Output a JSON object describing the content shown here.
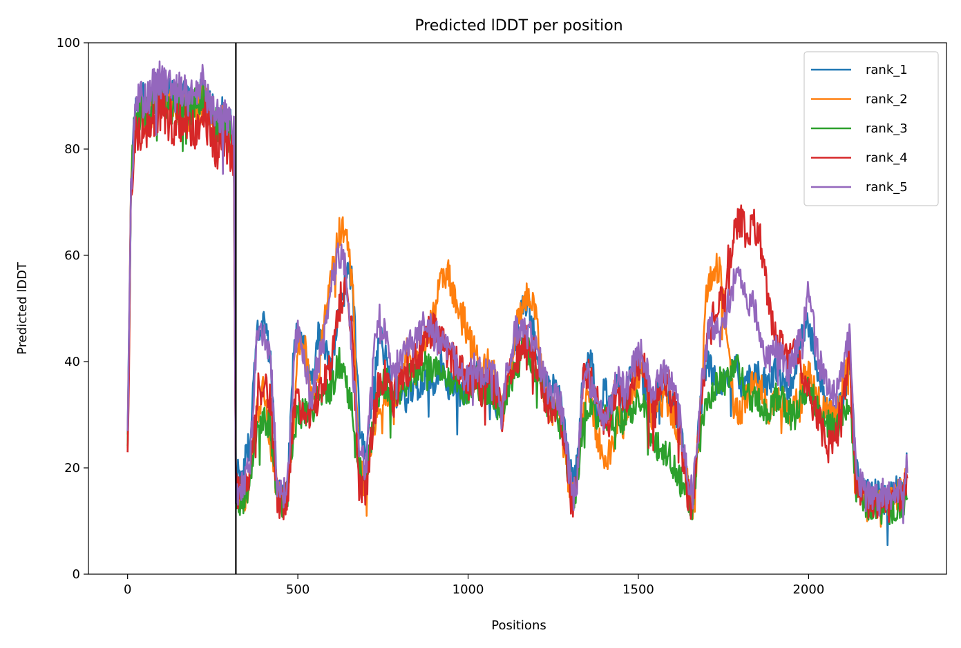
{
  "chart_data": {
    "type": "line",
    "title": "Predicted lDDT per position",
    "xlabel": "Positions",
    "ylabel": "Predicted lDDT",
    "xlim": [
      -115,
      2405
    ],
    "ylim": [
      0,
      100
    ],
    "xticks": [
      0,
      500,
      1000,
      1500,
      2000
    ],
    "yticks": [
      0,
      20,
      40,
      60,
      80,
      100
    ],
    "legend_position": "top-right",
    "vline_x": 318,
    "n_positions": 2291,
    "colors": [
      "#1f77b4",
      "#ff7f0e",
      "#2ca02c",
      "#d62728",
      "#9467bd"
    ],
    "shape_x": [
      0,
      10,
      20,
      40,
      60,
      80,
      100,
      120,
      140,
      160,
      180,
      200,
      220,
      240,
      260,
      280,
      300,
      312,
      318,
      325,
      340,
      360,
      380,
      400,
      420,
      440,
      455,
      470,
      490,
      500,
      520,
      540,
      560,
      580,
      600,
      620,
      640,
      660,
      680,
      700,
      720,
      740,
      760,
      780,
      800,
      820,
      840,
      860,
      880,
      900,
      920,
      940,
      960,
      980,
      1000,
      1020,
      1040,
      1060,
      1080,
      1100,
      1120,
      1140,
      1160,
      1180,
      1200,
      1220,
      1240,
      1260,
      1280,
      1300,
      1310,
      1320,
      1340,
      1360,
      1380,
      1400,
      1420,
      1440,
      1460,
      1480,
      1500,
      1520,
      1540,
      1560,
      1580,
      1600,
      1620,
      1640,
      1660,
      1680,
      1700,
      1720,
      1740,
      1760,
      1780,
      1800,
      1820,
      1840,
      1860,
      1880,
      1900,
      1920,
      1940,
      1960,
      1980,
      2000,
      2020,
      2040,
      2060,
      2080,
      2100,
      2120,
      2140,
      2160,
      2180,
      2200,
      2220,
      2240,
      2260,
      2280,
      2290
    ],
    "series": [
      {
        "name": "rank_1",
        "noise": 3.0,
        "values": [
          25,
          72,
          86,
          89,
          88,
          90,
          91,
          90,
          89,
          90,
          88,
          89,
          90,
          88,
          86,
          86,
          84,
          82,
          19,
          19,
          20,
          25,
          45,
          47,
          40,
          16,
          14,
          16,
          45,
          46,
          42,
          35,
          45,
          43,
          40,
          48,
          58,
          55,
          30,
          22,
          33,
          45,
          40,
          33,
          35,
          33,
          36,
          35,
          38,
          36,
          40,
          36,
          35,
          34,
          35,
          40,
          35,
          36,
          32,
          30,
          37,
          44,
          52,
          50,
          42,
          37,
          34,
          36,
          30,
          20,
          17,
          20,
          40,
          41,
          30,
          35,
          32,
          36,
          31,
          38,
          40,
          35,
          30,
          34,
          36,
          32,
          30,
          20,
          14,
          30,
          40,
          38,
          35,
          36,
          40,
          36,
          36,
          38,
          37,
          35,
          38,
          37,
          34,
          39,
          44,
          47,
          41,
          35,
          30,
          31,
          32,
          40,
          20,
          16,
          15,
          15,
          14,
          15,
          16,
          17,
          23
        ]
      },
      {
        "name": "rank_2",
        "noise": 3.0,
        "values": [
          22,
          72,
          84,
          88,
          87,
          89,
          90,
          89,
          88,
          87,
          86,
          87,
          89,
          87,
          84,
          85,
          83,
          80,
          17,
          15,
          14,
          18,
          30,
          35,
          25,
          15,
          13,
          15,
          30,
          42,
          43,
          33,
          36,
          50,
          57,
          64,
          65,
          55,
          20,
          16,
          25,
          30,
          35,
          33,
          36,
          42,
          38,
          40,
          45,
          50,
          55,
          57,
          52,
          50,
          45,
          42,
          38,
          40,
          37,
          30,
          36,
          47,
          50,
          53,
          48,
          36,
          30,
          32,
          24,
          16,
          15,
          17,
          32,
          33,
          26,
          22,
          23,
          30,
          28,
          33,
          38,
          36,
          30,
          32,
          33,
          30,
          27,
          18,
          13,
          28,
          52,
          58,
          57,
          45,
          32,
          30,
          33,
          36,
          35,
          30,
          33,
          34,
          30,
          32,
          36,
          38,
          34,
          32,
          30,
          30,
          35,
          43,
          18,
          15,
          14,
          14,
          13,
          14,
          15,
          16,
          21
        ]
      },
      {
        "name": "rank_3",
        "noise": 3.0,
        "values": [
          22,
          72,
          84,
          88,
          87,
          89,
          90,
          89,
          88,
          89,
          87,
          88,
          89,
          87,
          84,
          85,
          82,
          79,
          15,
          14,
          14,
          18,
          28,
          30,
          27,
          15,
          13,
          15,
          28,
          30,
          30,
          31,
          33,
          35,
          35,
          40,
          37,
          31,
          20,
          17,
          28,
          35,
          36,
          34,
          35,
          36,
          38,
          39,
          40,
          38,
          38,
          37,
          36,
          34,
          35,
          37,
          34,
          35,
          33,
          30,
          35,
          38,
          42,
          42,
          38,
          34,
          30,
          31,
          26,
          17,
          15,
          17,
          30,
          32,
          30,
          30,
          29,
          30,
          29,
          31,
          33,
          31,
          26,
          24,
          23,
          21,
          18,
          15,
          13,
          25,
          32,
          35,
          36,
          36,
          40,
          38,
          34,
          33,
          32,
          30,
          33,
          33,
          30,
          30,
          33,
          35,
          32,
          30,
          28,
          27,
          30,
          33,
          16,
          14,
          13,
          13,
          12,
          12,
          13,
          14,
          17
        ]
      },
      {
        "name": "rank_4",
        "noise": 3.5,
        "values": [
          20,
          70,
          82,
          84,
          85,
          86,
          88,
          86,
          85,
          86,
          84,
          85,
          87,
          84,
          80,
          82,
          80,
          78,
          16,
          15,
          15,
          20,
          34,
          36,
          32,
          14,
          13,
          15,
          32,
          35,
          30,
          30,
          34,
          37,
          40,
          50,
          55,
          45,
          17,
          16,
          28,
          36,
          38,
          33,
          36,
          38,
          40,
          42,
          46,
          46,
          44,
          42,
          40,
          38,
          36,
          38,
          35,
          36,
          34,
          30,
          37,
          40,
          44,
          44,
          40,
          35,
          30,
          32,
          27,
          15,
          14,
          17,
          38,
          37,
          32,
          28,
          30,
          36,
          31,
          36,
          40,
          38,
          31,
          34,
          37,
          33,
          28,
          17,
          12,
          28,
          43,
          48,
          50,
          57,
          64,
          67,
          64,
          66,
          62,
          52,
          45,
          43,
          40,
          42,
          38,
          34,
          30,
          27,
          24,
          25,
          33,
          40,
          16,
          14,
          13,
          13,
          13,
          13,
          14,
          15,
          19
        ]
      },
      {
        "name": "rank_5",
        "noise": 3.0,
        "values": [
          24,
          72,
          86,
          90,
          89,
          92,
          93,
          92,
          91,
          92,
          89,
          90,
          92,
          89,
          86,
          86,
          85,
          84,
          16,
          16,
          17,
          22,
          44,
          46,
          40,
          17,
          15,
          17,
          42,
          46,
          40,
          33,
          40,
          45,
          55,
          60,
          58,
          40,
          24,
          20,
          40,
          48,
          45,
          38,
          40,
          42,
          44,
          46,
          47,
          45,
          44,
          42,
          40,
          38,
          37,
          40,
          37,
          39,
          37,
          32,
          40,
          46,
          46,
          45,
          42,
          38,
          33,
          34,
          30,
          17,
          15,
          18,
          38,
          36,
          30,
          30,
          32,
          38,
          34,
          38,
          42,
          40,
          33,
          36,
          38,
          35,
          30,
          20,
          15,
          30,
          45,
          47,
          45,
          50,
          55,
          57,
          52,
          50,
          45,
          40,
          42,
          41,
          38,
          42,
          44,
          55,
          43,
          38,
          34,
          34,
          38,
          45,
          18,
          16,
          15,
          15,
          15,
          15,
          16,
          17,
          21
        ]
      }
    ]
  }
}
